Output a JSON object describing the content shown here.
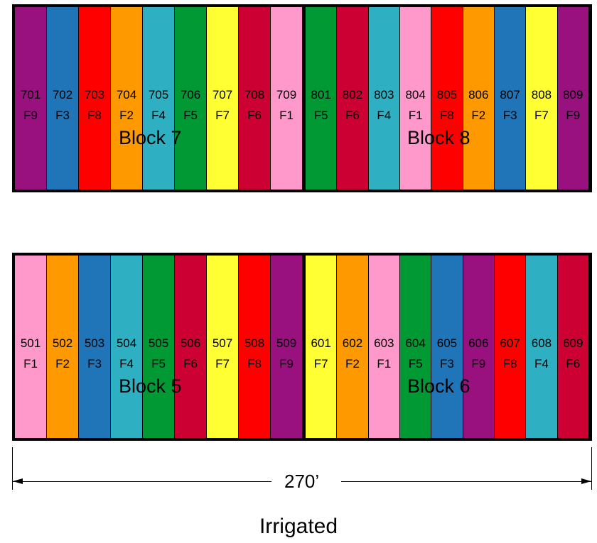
{
  "colors": {
    "F1": "#ff99cc",
    "F2": "#ff9900",
    "F3": "#1f75b8",
    "F4": "#2eb0c2",
    "F5": "#009933",
    "F6": "#cc0033",
    "F7": "#ffff33",
    "F8": "#ff0000",
    "F9": "#99117f"
  },
  "rows": [
    {
      "blocks": [
        {
          "label": "Block 7",
          "plots": [
            {
              "num": "701",
              "trt": "F9"
            },
            {
              "num": "702",
              "trt": "F3"
            },
            {
              "num": "703",
              "trt": "F8"
            },
            {
              "num": "704",
              "trt": "F2"
            },
            {
              "num": "705",
              "trt": "F4"
            },
            {
              "num": "706",
              "trt": "F5"
            },
            {
              "num": "707",
              "trt": "F7"
            },
            {
              "num": "708",
              "trt": "F6"
            },
            {
              "num": "709",
              "trt": "F1"
            }
          ]
        },
        {
          "label": "Block 8",
          "plots": [
            {
              "num": "801",
              "trt": "F5"
            },
            {
              "num": "802",
              "trt": "F6"
            },
            {
              "num": "803",
              "trt": "F4"
            },
            {
              "num": "804",
              "trt": "F1"
            },
            {
              "num": "805",
              "trt": "F8"
            },
            {
              "num": "806",
              "trt": "F2"
            },
            {
              "num": "807",
              "trt": "F3"
            },
            {
              "num": "808",
              "trt": "F7"
            },
            {
              "num": "809",
              "trt": "F9"
            }
          ]
        }
      ]
    },
    {
      "blocks": [
        {
          "label": "Block 5",
          "plots": [
            {
              "num": "501",
              "trt": "F1"
            },
            {
              "num": "502",
              "trt": "F2"
            },
            {
              "num": "503",
              "trt": "F3"
            },
            {
              "num": "504",
              "trt": "F4"
            },
            {
              "num": "505",
              "trt": "F5"
            },
            {
              "num": "506",
              "trt": "F6"
            },
            {
              "num": "507",
              "trt": "F7"
            },
            {
              "num": "508",
              "trt": "F8"
            },
            {
              "num": "509",
              "trt": "F9"
            }
          ]
        },
        {
          "label": "Block 6",
          "plots": [
            {
              "num": "601",
              "trt": "F7"
            },
            {
              "num": "602",
              "trt": "F2"
            },
            {
              "num": "603",
              "trt": "F1"
            },
            {
              "num": "604",
              "trt": "F5"
            },
            {
              "num": "605",
              "trt": "F3"
            },
            {
              "num": "606",
              "trt": "F9"
            },
            {
              "num": "607",
              "trt": "F8"
            },
            {
              "num": "608",
              "trt": "F4"
            },
            {
              "num": "609",
              "trt": "F6"
            }
          ]
        }
      ]
    }
  ],
  "dimension": "270’",
  "caption": "Irrigated"
}
